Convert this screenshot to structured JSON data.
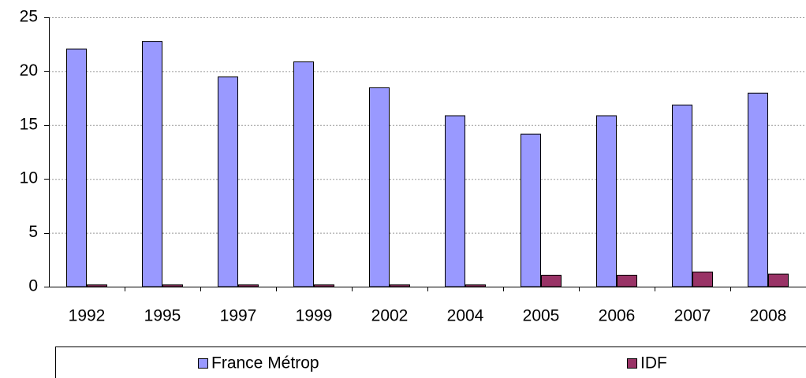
{
  "chart_data": {
    "type": "bar",
    "categories": [
      "1992",
      "1995",
      "1997",
      "1999",
      "2002",
      "2004",
      "2005",
      "2006",
      "2007",
      "2008"
    ],
    "series": [
      {
        "name": "France Métrop",
        "color": "#9999ff",
        "values": [
          22.1,
          22.8,
          19.5,
          20.9,
          18.5,
          15.9,
          14.2,
          15.9,
          16.9,
          18.0
        ]
      },
      {
        "name": "IDF",
        "color": "#993366",
        "values": [
          0.2,
          0.2,
          0.2,
          0.2,
          0.2,
          0.2,
          1.1,
          1.1,
          1.4,
          1.2
        ]
      }
    ],
    "ylim": [
      0,
      25
    ],
    "yticks": [
      0,
      5,
      10,
      15,
      20,
      25
    ],
    "grid": true,
    "legend": "bottom"
  }
}
